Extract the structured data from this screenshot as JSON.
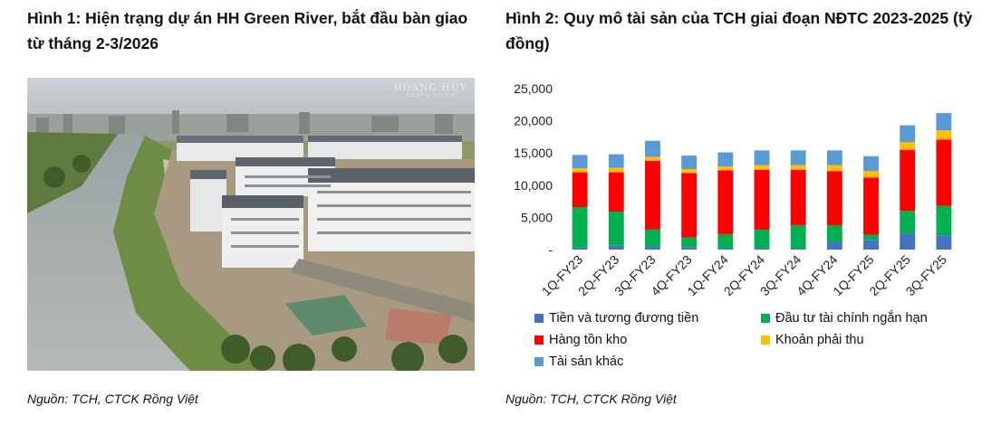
{
  "figure1": {
    "title": "Hình 1: Hiện trạng dự án HH Green River, bắt đầu bàn giao từ tháng 2-3/2026",
    "watermark_line1": "HOANG HUY",
    "watermark_line2": "GREEN RIVER",
    "source": "Nguồn: TCH, CTCK Rồng Việt"
  },
  "figure2": {
    "title": "Hình 2: Quy mô tài sản của TCH giai đoạn NĐTC 2023-2025 (tỷ đồng)",
    "source": "Nguồn: TCH, CTCK Rồng Việt"
  },
  "chart_data": {
    "type": "bar",
    "stacked": true,
    "title": "",
    "xlabel": "",
    "ylabel": "",
    "ylim": [
      0,
      25000
    ],
    "yticks": [
      0,
      5000,
      10000,
      15000,
      20000,
      25000
    ],
    "ytick_labels": [
      "-",
      "5,000",
      "10,000",
      "15,000",
      "20,000",
      "25,000"
    ],
    "grid": false,
    "legend_position": "bottom",
    "categories": [
      "1Q-FY23",
      "2Q-FY23",
      "3Q-FY23",
      "4Q-FY23",
      "1Q-FY24",
      "2Q-FY24",
      "3Q-FY24",
      "4Q-FY24",
      "1Q-FY25",
      "2Q-FY25",
      "3Q-FY25"
    ],
    "series": [
      {
        "name": "Tiền và tương đương tiền",
        "color": "#4472C4",
        "values": [
          300,
          600,
          500,
          400,
          200,
          200,
          200,
          1200,
          1500,
          2500,
          2200
        ]
      },
      {
        "name": "Đầu tư tài chính ngắn hạn",
        "color": "#00B050",
        "values": [
          6300,
          5300,
          2600,
          1500,
          2200,
          2900,
          3600,
          2600,
          800,
          3500,
          4600
        ]
      },
      {
        "name": "Hàng tồn kho",
        "color": "#FF0000",
        "values": [
          5400,
          6100,
          10700,
          10000,
          9900,
          9300,
          8600,
          8400,
          8900,
          9500,
          10300
        ]
      },
      {
        "name": "Khoản phải thu",
        "color": "#FFC000",
        "values": [
          600,
          700,
          600,
          600,
          600,
          700,
          700,
          900,
          1000,
          1200,
          1400
        ]
      },
      {
        "name": "Tài sản khác",
        "color": "#5B9BD5",
        "values": [
          2100,
          2100,
          2500,
          2100,
          2200,
          2300,
          2300,
          2300,
          2300,
          2600,
          2700
        ]
      }
    ]
  }
}
